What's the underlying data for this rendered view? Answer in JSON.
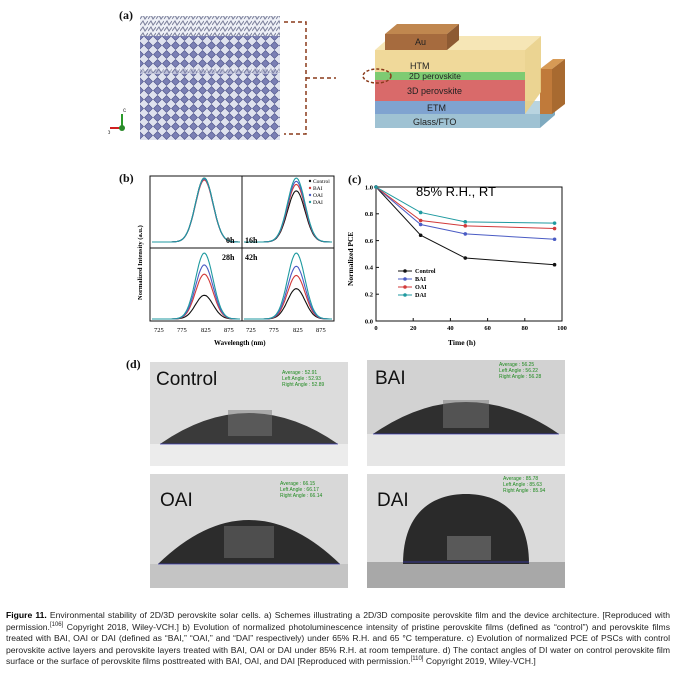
{
  "panel_a": {
    "label": "(a)",
    "layers": {
      "au": "Au",
      "htm": "HTM",
      "two_d": "2D perovskite",
      "three_d": "3D perovskite",
      "etm": "ETM",
      "glass": "Glass/FTO"
    },
    "axis_labels": {
      "c": "c",
      "b": "b"
    }
  },
  "panel_b": {
    "label": "(b)",
    "ylabel": "Normalized Intensity (a.u.)",
    "xlabel": "Wavelength (nm)",
    "xticks": [
      "725",
      "775",
      "825",
      "875"
    ],
    "subplot_labels": [
      "0h",
      "16h",
      "28h",
      "42h"
    ],
    "legend": [
      "Control",
      "BAI",
      "OAI",
      "DAI"
    ]
  },
  "panel_c": {
    "label": "(c)",
    "title": "85% R.H., RT"
  },
  "panel_d": {
    "label": "(d)",
    "photos": [
      {
        "name": "Control",
        "average": "Average : 52.91",
        "left": "Left Angle : 52.93",
        "right": "Right Angle : 52.89"
      },
      {
        "name": "BAI",
        "average": "Average : 56.25",
        "left": "Left Angle : 56.22",
        "right": "Right Angle : 56.28"
      },
      {
        "name": "OAI",
        "average": "Average : 66.15",
        "left": "Left Angle : 66.17",
        "right": "Right Angle : 66.14"
      },
      {
        "name": "DAI",
        "average": "Average : 85.78",
        "left": "Left Angle : 85.63",
        "right": "Right Angle : 85.94"
      }
    ]
  },
  "caption": {
    "figure": "Figure 11.",
    "text_1": " Environmental stability of 2D/3D perovskite solar cells. a) Schemes illustrating a 2D/3D composite perovskite film and the device architecture. [Reproduced with permission.",
    "ref_1": "[106]",
    "text_2": " Copyright 2018, Wiley-VCH.] b) Evolution of normalized photoluminescence intensity of pristine perovskite films (defined as “control”) and perovskite films treated with BAI, OAI or DAI (defined as “BAI,” “OAI,” and “DAI” respectively) under 65% R.H. and 65 °C temperature. c) Evolution of normalized PCE of PSCs with control perovskite active layers and perovskite layers treated with BAI, OAI or DAI under 85% R.H. at room temperature. d) The contact angles of DI water on control perovskite film surface or the surface of perovskite films posttreated with BAI, OAI, and DAI [Reproduced with permission.",
    "ref_2": "[110]",
    "text_3": " Copyright 2019, Wiley-VCH.]"
  },
  "chart_data": [
    {
      "type": "line",
      "title": "85% R.H., RT",
      "xlabel": "Time (h)",
      "ylabel": "Normalized PCE",
      "xlim": [
        0,
        100
      ],
      "ylim": [
        0,
        1.0
      ],
      "xticks": [
        0,
        20,
        40,
        60,
        80,
        100
      ],
      "yticks": [
        0.0,
        0.2,
        0.4,
        0.6,
        0.8,
        1.0
      ],
      "x": [
        0,
        24,
        48,
        96
      ],
      "legend_position": "lower-left",
      "series": [
        {
          "name": "Control",
          "color": "#111111",
          "values": [
            1.0,
            0.64,
            0.47,
            0.42
          ]
        },
        {
          "name": "BAI",
          "color": "#4a5bc4",
          "values": [
            1.0,
            0.72,
            0.65,
            0.61
          ]
        },
        {
          "name": "OAI",
          "color": "#d23a3a",
          "values": [
            1.0,
            0.75,
            0.71,
            0.69
          ]
        },
        {
          "name": "DAI",
          "color": "#1f9aa0",
          "values": [
            1.0,
            0.81,
            0.74,
            0.73
          ]
        }
      ]
    }
  ]
}
